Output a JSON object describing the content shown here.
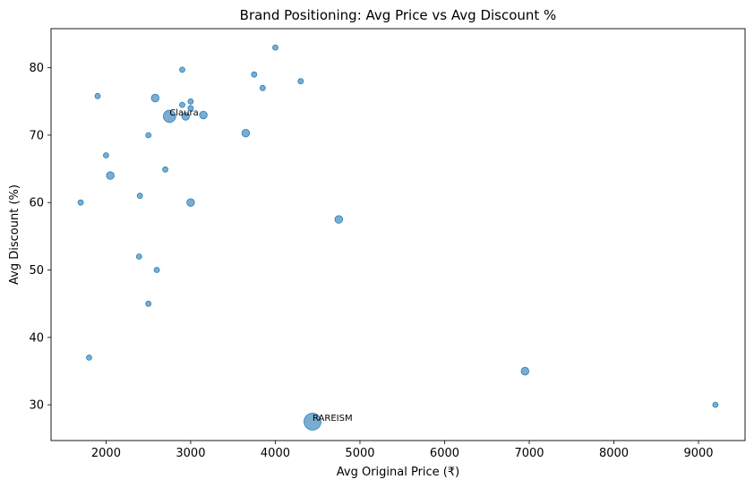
{
  "chart_data": {
    "type": "scatter",
    "title": "Brand Positioning: Avg Price vs Avg Discount %",
    "xlabel": "Avg Original Price (₹)",
    "ylabel": "Avg Discount (%)",
    "xlim": [
      1350,
      9550
    ],
    "ylim": [
      24.7,
      85.8
    ],
    "xticks": [
      2000,
      3000,
      4000,
      5000,
      6000,
      7000,
      8000,
      9000
    ],
    "yticks": [
      30,
      40,
      50,
      60,
      70,
      80
    ],
    "grid": false,
    "marker_color": "#1f77b4",
    "marker_alpha": 0.6,
    "points": [
      {
        "x": 4000,
        "y": 83.0,
        "size": 1
      },
      {
        "x": 2900,
        "y": 79.7,
        "size": 1
      },
      {
        "x": 3750,
        "y": 79.0,
        "size": 1
      },
      {
        "x": 4300,
        "y": 78.0,
        "size": 1
      },
      {
        "x": 3850,
        "y": 77.0,
        "size": 1
      },
      {
        "x": 1900,
        "y": 75.8,
        "size": 1
      },
      {
        "x": 2580,
        "y": 75.5,
        "size": 2
      },
      {
        "x": 3000,
        "y": 75.0,
        "size": 1
      },
      {
        "x": 2900,
        "y": 74.5,
        "size": 1
      },
      {
        "x": 3000,
        "y": 74.0,
        "size": 1
      },
      {
        "x": 2750,
        "y": 72.8,
        "size": 4,
        "label": "Claura"
      },
      {
        "x": 2940,
        "y": 72.8,
        "size": 2
      },
      {
        "x": 3150,
        "y": 73.0,
        "size": 2
      },
      {
        "x": 3650,
        "y": 70.3,
        "size": 2
      },
      {
        "x": 2500,
        "y": 70.0,
        "size": 1
      },
      {
        "x": 2000,
        "y": 67.0,
        "size": 1
      },
      {
        "x": 2700,
        "y": 64.9,
        "size": 1
      },
      {
        "x": 2050,
        "y": 64.0,
        "size": 2
      },
      {
        "x": 2400,
        "y": 61.0,
        "size": 1
      },
      {
        "x": 1700,
        "y": 60.0,
        "size": 1
      },
      {
        "x": 3000,
        "y": 60.0,
        "size": 2
      },
      {
        "x": 4750,
        "y": 57.5,
        "size": 2
      },
      {
        "x": 2390,
        "y": 52.0,
        "size": 1
      },
      {
        "x": 2600,
        "y": 50.0,
        "size": 1
      },
      {
        "x": 2500,
        "y": 45.0,
        "size": 1
      },
      {
        "x": 1800,
        "y": 37.0,
        "size": 1
      },
      {
        "x": 6950,
        "y": 35.0,
        "size": 2
      },
      {
        "x": 9200,
        "y": 30.0,
        "size": 1
      },
      {
        "x": 4440,
        "y": 27.5,
        "size": 6,
        "label": "RAREISM"
      }
    ]
  }
}
